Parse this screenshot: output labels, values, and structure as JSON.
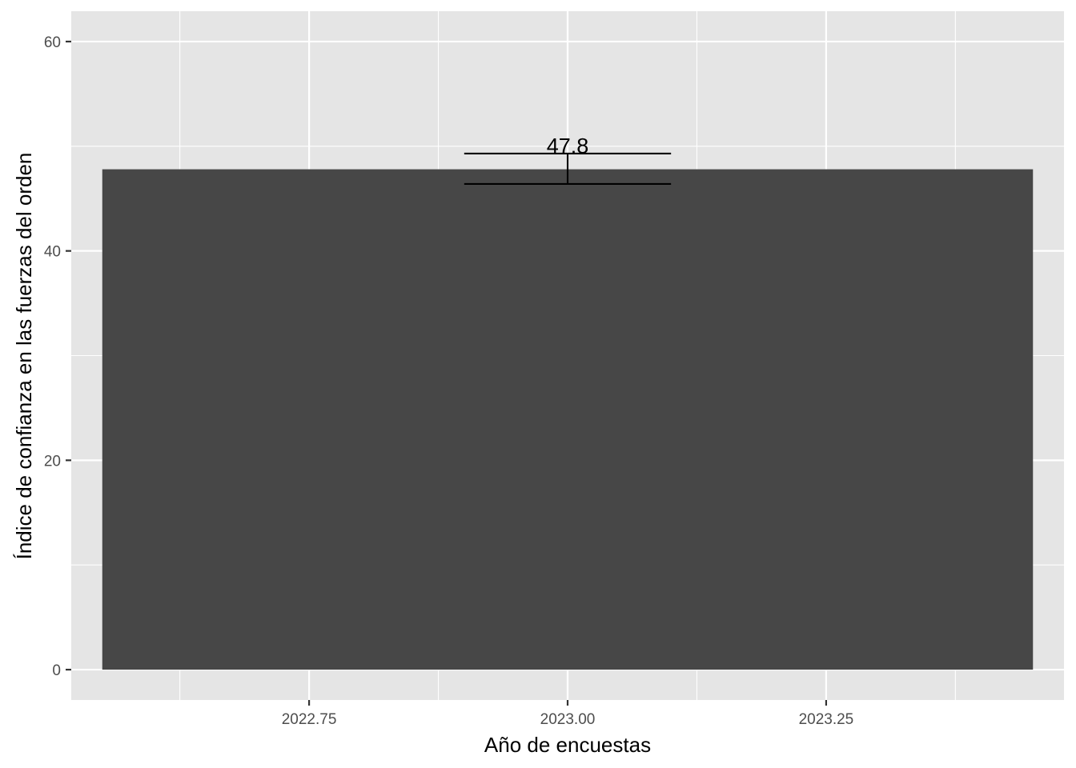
{
  "chart_data": {
    "type": "bar",
    "xlabel": "Año de encuestas",
    "ylabel": "Índice de confianza en las fuerzas del orden",
    "x": [
      2023.0
    ],
    "values": [
      47.8
    ],
    "error_bars": [
      {
        "x": 2023.0,
        "lower": 46.4,
        "upper": 49.3
      }
    ],
    "data_labels": [
      "47.8"
    ],
    "bar_width": 0.9,
    "errorbar_width": 0.2,
    "xlim": [
      2022.52,
      2023.48
    ],
    "ylim": [
      -2.9,
      62.9
    ],
    "x_major_ticks": [
      2022.75,
      2023.0,
      2023.25
    ],
    "x_tick_labels": [
      "2022.75",
      "2023.00",
      "2023.25"
    ],
    "x_minor_ticks": [
      2022.625,
      2022.875,
      2023.125,
      2023.375
    ],
    "y_major_ticks": [
      0,
      20,
      40,
      60
    ],
    "y_tick_labels": [
      "0",
      "20",
      "40",
      "60"
    ],
    "y_minor_ticks": [
      10,
      30,
      50
    ],
    "grid": true,
    "legend": "none",
    "colors": {
      "panel": "#e5e5e5",
      "grid": "#ffffff",
      "bar": "#474747",
      "errorbar": "#000000",
      "tick": "#333333"
    }
  }
}
